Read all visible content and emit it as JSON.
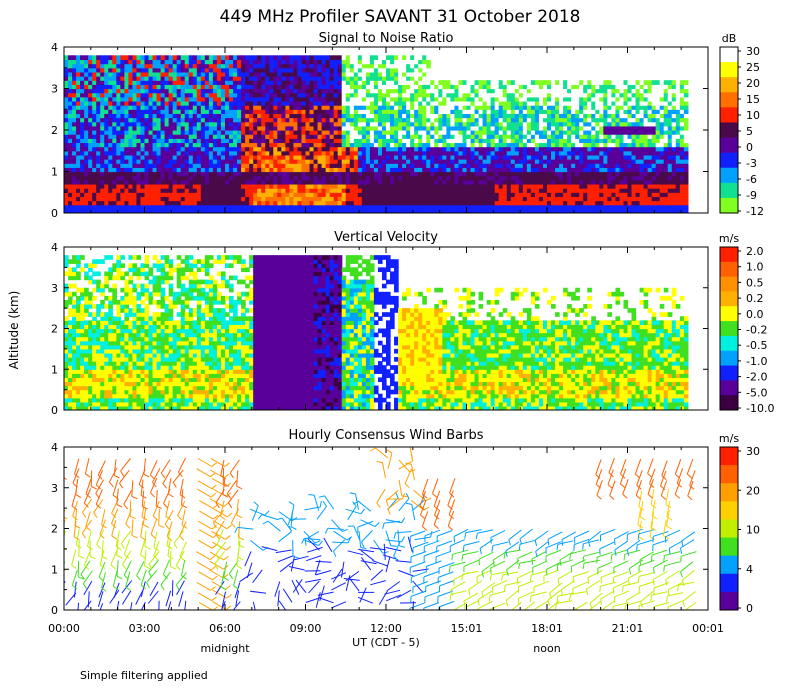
{
  "chart_data": {
    "type": "heatmap",
    "title": "449 MHz Profiler SAVANT 31 October 2018",
    "ylabel": "Altitude (km)",
    "xlabel": "UT  (CDT - 5)",
    "x_tick_labels": [
      "00:00",
      "03:00",
      "06:00",
      "09:00",
      "12:00",
      "15:01",
      "18:01",
      "21:01",
      "00:01"
    ],
    "x_range_hours": [
      0,
      24
    ],
    "x_ticks_hours": [
      0,
      3,
      6,
      9,
      12,
      15,
      18,
      21,
      24
    ],
    "sublabels": [
      {
        "text": "midnight",
        "hour": 6
      },
      {
        "text": "noon",
        "hour": 18
      }
    ],
    "footnote": "Simple filtering applied",
    "panels": [
      {
        "title": "Signal to Noise Ratio",
        "type": "heatmap",
        "ylim": [
          0,
          4
        ],
        "y_ticks": [
          "0",
          "1",
          "2",
          "3",
          "4"
        ],
        "colorbar": {
          "unit": "dB",
          "labels": [
            "30",
            "25",
            "20",
            "15",
            "10",
            "5",
            "0",
            "-3",
            "-6",
            "-9",
            "-12"
          ],
          "colors": [
            "#ffffff",
            "#ffff00",
            "#ffb000",
            "#ff7000",
            "#ff2000",
            "#4a0a4a",
            "#5a009a",
            "#1020ff",
            "#00a0ff",
            "#10e090",
            "#80ff20"
          ]
        }
      },
      {
        "title": "Vertical Velocity",
        "type": "heatmap",
        "ylim": [
          0,
          4
        ],
        "y_ticks": [
          "0",
          "1",
          "2",
          "3",
          "4"
        ],
        "colorbar": {
          "unit": "m/s",
          "labels": [
            "2.0",
            "1.0",
            "0.5",
            "0.2",
            "0.0",
            "-0.2",
            "-0.5",
            "-1.0",
            "-2.0",
            "-5.0",
            "-10.0"
          ],
          "colors": [
            "#ff2000",
            "#ff6000",
            "#ff9000",
            "#ffb000",
            "#ffff00",
            "#40e020",
            "#00f0e0",
            "#00a0ff",
            "#1020ff",
            "#5a009a",
            "#3a0040"
          ]
        }
      },
      {
        "title": "Hourly Consensus Wind Barbs",
        "type": "barbs",
        "ylim": [
          0,
          4
        ],
        "y_ticks": [
          "0",
          "1",
          "2",
          "3",
          "4"
        ],
        "colorbar": {
          "unit": "m/s",
          "labels": [
            "30",
            "20",
            "10",
            "4",
            "0"
          ],
          "colors": [
            "#ff2000",
            "#ff6000",
            "#ffa000",
            "#ffd000",
            "#c0f000",
            "#40e020",
            "#00a0ff",
            "#1020ff",
            "#5a009a"
          ]
        }
      }
    ]
  }
}
